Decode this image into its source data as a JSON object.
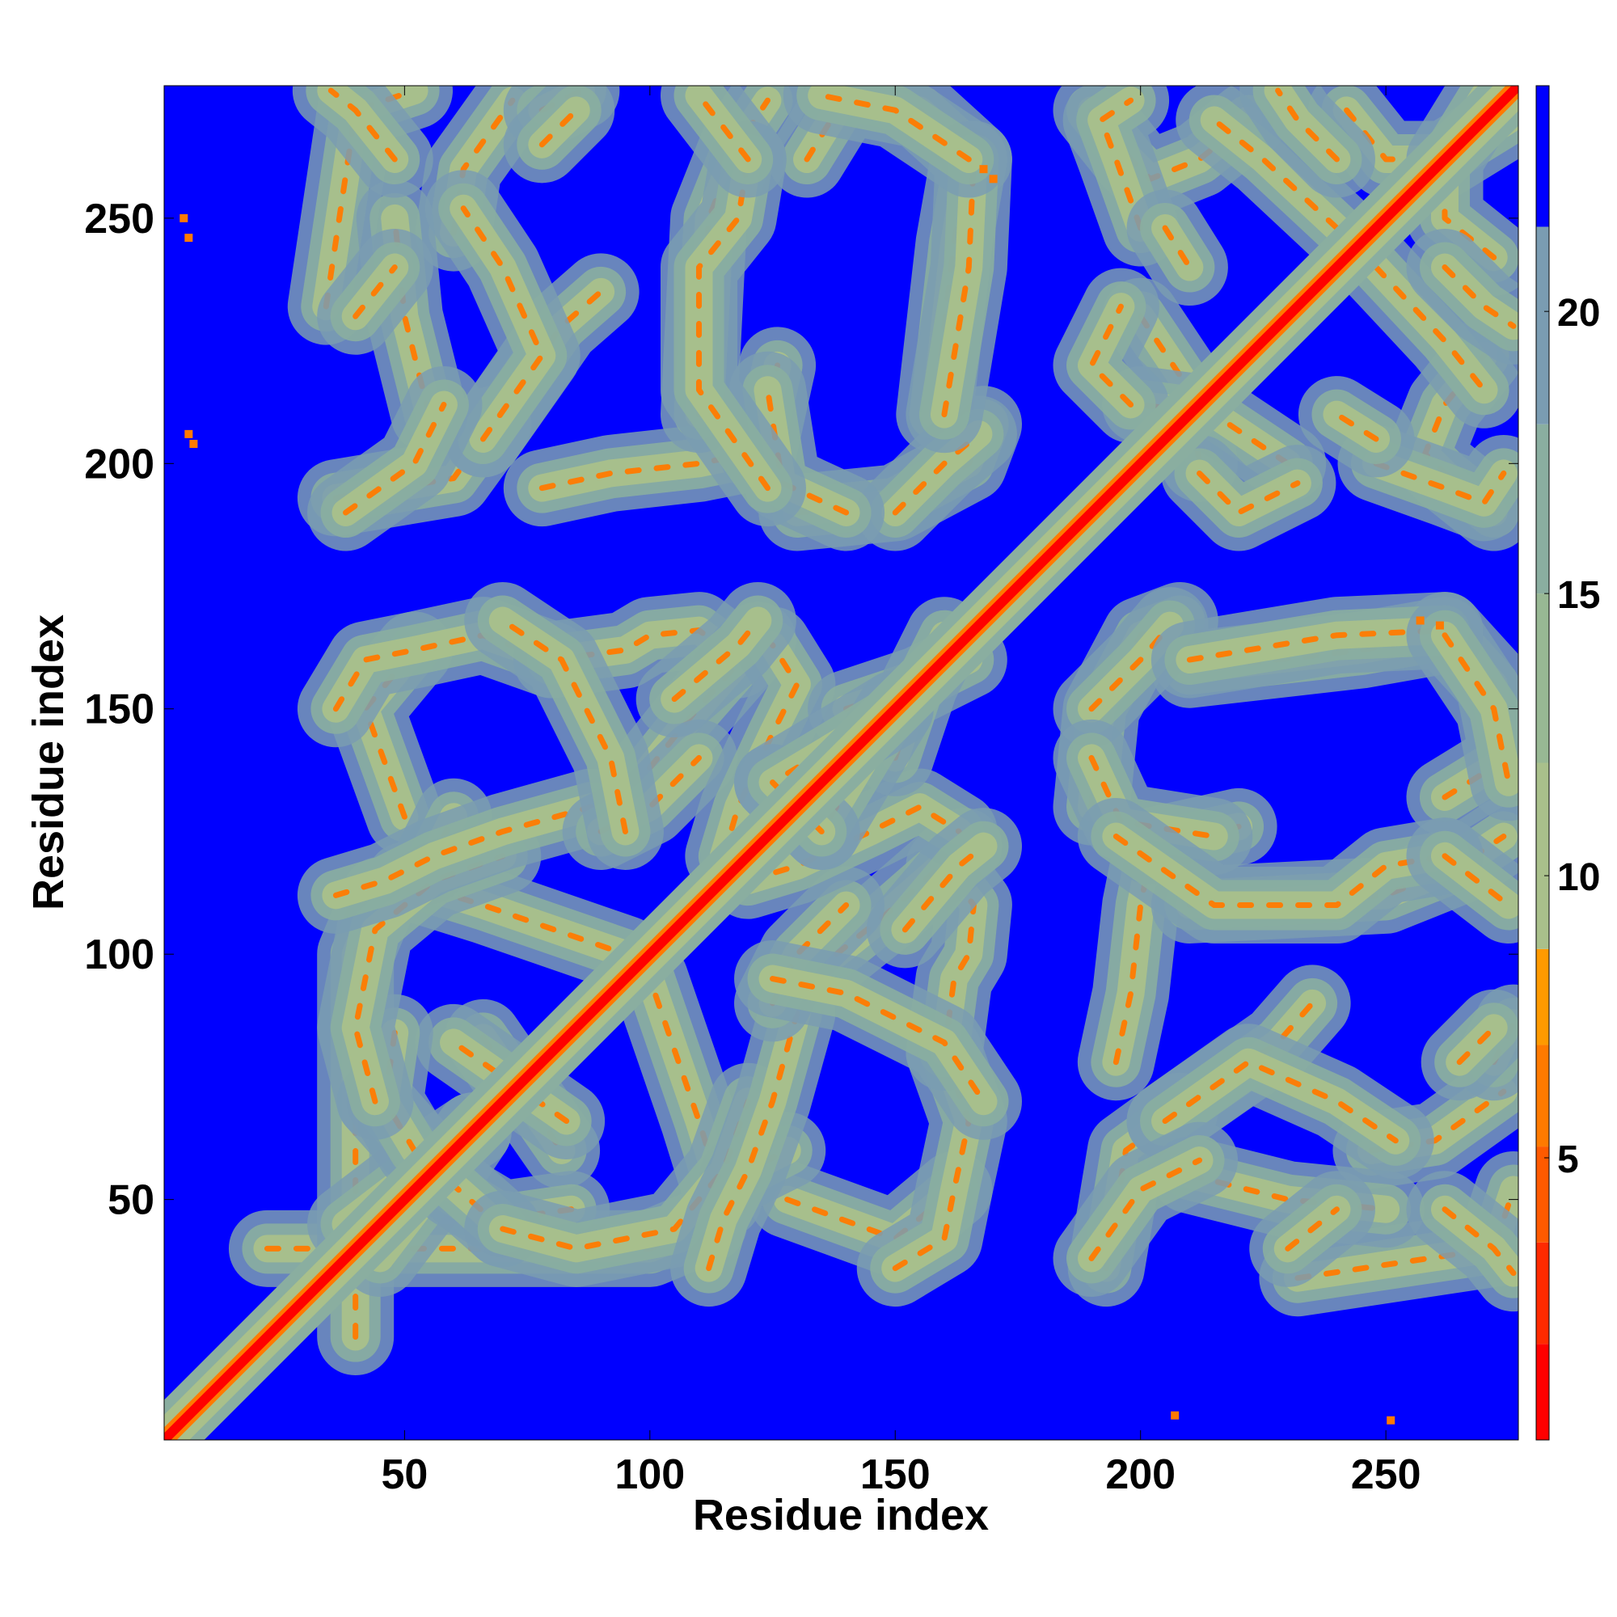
{
  "chart_data": {
    "type": "heatmap",
    "title": "",
    "xlabel": "Residue index",
    "ylabel": "Residue index",
    "x_range": [
      1,
      277
    ],
    "y_range": [
      1,
      277
    ],
    "x_ticks": [
      50,
      100,
      150,
      200,
      250
    ],
    "y_ticks": [
      50,
      100,
      150,
      200,
      250
    ],
    "colorbar": {
      "range": [
        0,
        24
      ],
      "ticks": [
        5,
        10,
        15,
        20
      ],
      "color_bands": [
        {
          "from": 0,
          "to": 1.7,
          "color": "#ff0000"
        },
        {
          "from": 1.7,
          "to": 3.5,
          "color": "#ff2a00"
        },
        {
          "from": 3.5,
          "to": 5.2,
          "color": "#ff5a00"
        },
        {
          "from": 5.2,
          "to": 7.0,
          "color": "#ff7a00"
        },
        {
          "from": 7.0,
          "to": 8.7,
          "color": "#ff9a00"
        },
        {
          "from": 8.7,
          "to": 12.0,
          "color": "#a9c08b"
        },
        {
          "from": 12.0,
          "to": 15.0,
          "color": "#98b894"
        },
        {
          "from": 15.0,
          "to": 18.0,
          "color": "#8aaea0"
        },
        {
          "from": 18.0,
          "to": 21.5,
          "color": "#7a9cb2"
        },
        {
          "from": 21.5,
          "to": 24.0,
          "color": "#0000ff"
        }
      ]
    },
    "background_color": "#0000ff",
    "contact_ribbons": [
      {
        "x": [
          22,
          60,
          100,
          112
        ],
        "y": [
          40,
          40,
          40,
          45
        ]
      },
      {
        "x": [
          38,
          55,
          64
        ],
        "y": [
          45,
          58,
          64
        ]
      },
      {
        "x": [
          66,
          82
        ],
        "y": [
          83,
          60
        ]
      },
      {
        "x": [
          84,
          70,
          60,
          44
        ],
        "y": [
          48,
          46,
          52,
          70
        ]
      },
      {
        "x": [
          115,
          110,
          100
        ],
        "y": [
          50,
          66,
          95
        ]
      },
      {
        "x": [
          128,
          150,
          162
        ],
        "y": [
          50,
          42,
          52
        ]
      },
      {
        "x": [
          118,
          128
        ],
        "y": [
          55,
          60
        ]
      },
      {
        "x": [
          44,
          40,
          44,
          56,
          70
        ],
        "y": [
          70,
          85,
          105,
          115,
          120
        ]
      },
      {
        "x": [
          36,
          46,
          56,
          70,
          88
        ],
        "y": [
          112,
          115,
          120,
          125,
          130
        ]
      },
      {
        "x": [
          36,
          42,
          52,
          66,
          80
        ],
        "y": [
          150,
          160,
          162,
          165,
          160
        ]
      },
      {
        "x": [
          80,
          95,
          100,
          110,
          118
        ],
        "y": [
          160,
          162,
          165,
          166,
          160
        ]
      },
      {
        "x": [
          100,
          108,
          122
        ],
        "y": [
          138,
          148,
          164
        ]
      },
      {
        "x": [
          90,
          100,
          110
        ],
        "y": [
          125,
          130,
          140
        ]
      },
      {
        "x": [
          120,
          130,
          145,
          155,
          163
        ],
        "y": [
          115,
          118,
          125,
          130,
          125
        ]
      },
      {
        "x": [
          152,
          163,
          168
        ],
        "y": [
          105,
          118,
          122
        ]
      },
      {
        "x": [
          125,
          140,
          160,
          168
        ],
        "y": [
          95,
          92,
          82,
          70
        ]
      },
      {
        "x": [
          140,
          155,
          165
        ],
        "y": [
          150,
          155,
          160
        ]
      },
      {
        "x": [
          125,
          135,
          150
        ],
        "y": [
          135,
          125,
          150
        ]
      },
      {
        "x": [
          36,
          60,
          68
        ],
        "y": [
          193,
          197,
          208
        ]
      },
      {
        "x": [
          66,
          82,
          90
        ],
        "y": [
          205,
          228,
          235
        ]
      },
      {
        "x": [
          60,
          62,
          72
        ],
        "y": [
          247,
          260,
          274
        ]
      },
      {
        "x": [
          34,
          40,
          52
        ],
        "y": [
          232,
          272,
          276
        ]
      },
      {
        "x": [
          78,
          86
        ],
        "y": [
          272,
          276
        ]
      },
      {
        "x": [
          78,
          92,
          110,
          120
        ],
        "y": [
          195,
          198,
          200,
          202
        ]
      },
      {
        "x": [
          110,
          112,
          118,
          124
        ],
        "y": [
          210,
          250,
          265,
          274
        ]
      },
      {
        "x": [
          122,
          126
        ],
        "y": [
          202,
          220
        ]
      },
      {
        "x": [
          130,
          150,
          165,
          168
        ],
        "y": [
          190,
          192,
          200,
          208
        ]
      },
      {
        "x": [
          132,
          140,
          155,
          166
        ],
        "y": [
          262,
          275,
          272,
          262
        ]
      },
      {
        "x": [
          158,
          162,
          165
        ],
        "y": [
          210,
          245,
          262
        ]
      },
      {
        "x": [
          190,
          200,
          206
        ],
        "y": [
          150,
          160,
          167
        ]
      },
      {
        "x": [
          190,
          196,
          215
        ],
        "y": [
          140,
          127,
          124
        ]
      },
      {
        "x": [
          210,
          240,
          262
        ],
        "y": [
          160,
          165,
          166
        ]
      },
      {
        "x": [
          262,
          272,
          275
        ],
        "y": [
          165,
          150,
          135
        ]
      },
      {
        "x": [
          195,
          215,
          240,
          250,
          262
        ],
        "y": [
          124,
          110,
          110,
          118,
          120
        ]
      },
      {
        "x": [
          262,
          275
        ],
        "y": [
          120,
          110
        ]
      },
      {
        "x": [
          205,
          222,
          240,
          252
        ],
        "y": [
          66,
          78,
          70,
          62
        ]
      },
      {
        "x": [
          210,
          230,
          250
        ],
        "y": [
          55,
          50,
          48
        ]
      },
      {
        "x": [
          190,
          200,
          212
        ],
        "y": [
          38,
          52,
          58
        ]
      },
      {
        "x": [
          230,
          240
        ],
        "y": [
          40,
          48
        ]
      },
      {
        "x": [
          262,
          272,
          276
        ],
        "y": [
          48,
          40,
          35
        ]
      },
      {
        "x": [
          265,
          272
        ],
        "y": [
          78,
          85
        ]
      },
      {
        "x": [
          190,
          198,
          202,
          212,
          222
        ],
        "y": [
          272,
          262,
          258,
          262,
          270
        ]
      },
      {
        "x": [
          242,
          250,
          262,
          275
        ],
        "y": [
          272,
          262,
          262,
          270
        ]
      },
      {
        "x": [
          200,
          210,
          212
        ],
        "y": [
          230,
          215,
          200
        ]
      },
      {
        "x": [
          212,
          220,
          232
        ],
        "y": [
          198,
          190,
          196
        ]
      },
      {
        "x": [
          248,
          262,
          270
        ],
        "y": [
          240,
          225,
          215
        ]
      },
      {
        "x": [
          248,
          262,
          270,
          274
        ],
        "y": [
          200,
          195,
          192,
          198
        ]
      },
      {
        "x": [
          262,
          270,
          276
        ],
        "y": [
          240,
          232,
          228
        ]
      },
      {
        "x": [
          205,
          210
        ],
        "y": [
          248,
          240
        ]
      }
    ],
    "isolated_contacts": [
      {
        "x": 5,
        "y": 250
      },
      {
        "x": 6,
        "y": 246
      },
      {
        "x": 6,
        "y": 206
      },
      {
        "x": 7,
        "y": 204
      },
      {
        "x": 207,
        "y": 6
      },
      {
        "x": 251,
        "y": 5
      },
      {
        "x": 170,
        "y": 258
      },
      {
        "x": 168,
        "y": 260
      },
      {
        "x": 257,
        "y": 168
      },
      {
        "x": 261,
        "y": 167
      }
    ]
  }
}
